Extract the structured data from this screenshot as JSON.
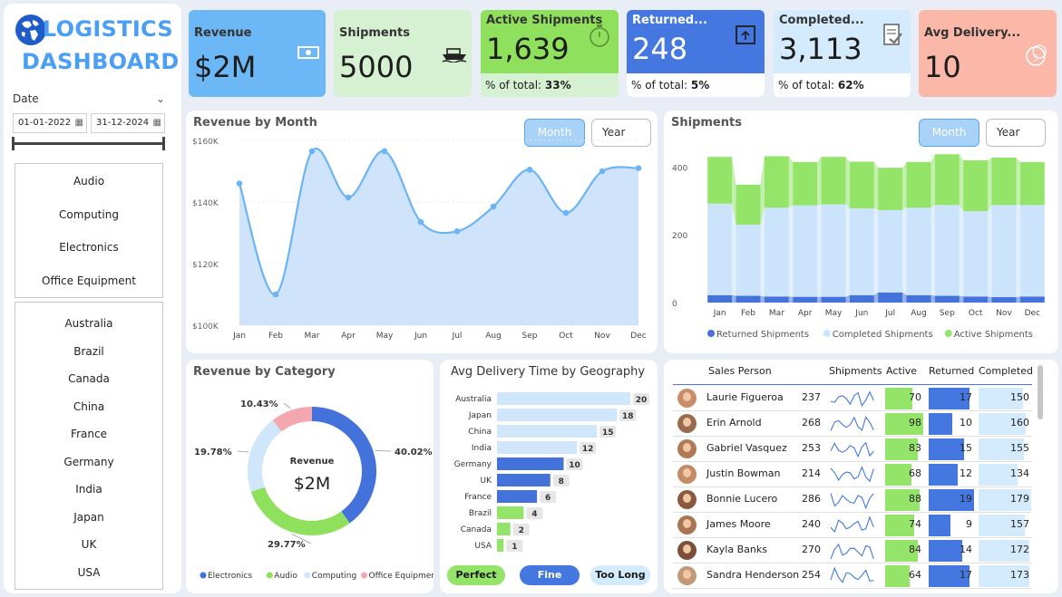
{
  "logo": {
    "line1": "LOGISTICS",
    "line2": "DASHBOARD",
    "icon": "globe-icon"
  },
  "date_filter": {
    "label": "Date",
    "start": "01-01-2022",
    "end": "31-12-2024"
  },
  "categories": [
    "Audio",
    "Computing",
    "Electronics",
    "Office Equipment"
  ],
  "countries": [
    "Australia",
    "Brazil",
    "Canada",
    "China",
    "France",
    "Germany",
    "India",
    "Japan",
    "UK",
    "USA"
  ],
  "kpis": {
    "revenue": {
      "title": "Revenue",
      "value": "$2M",
      "icon": "money-icon",
      "color": "#6cb8f6"
    },
    "shipments": {
      "title": "Shipments",
      "value": "5000",
      "icon": "ship-icon",
      "color": "#d6f1d1"
    },
    "active": {
      "title": "Active Shipments",
      "value": "1,639",
      "pct_label": "% of total:",
      "pct": "33%",
      "icon": "stopwatch-icon",
      "color": "#8fe05c"
    },
    "returned": {
      "title": "Returned...",
      "value": "248",
      "pct_label": "% of total:",
      "pct": "5%",
      "icon": "return-box-icon",
      "color": "#4478e0"
    },
    "completed": {
      "title": "Completed...",
      "value": "3,113",
      "pct_label": "% of total:",
      "pct": "62%",
      "icon": "checklist-icon",
      "color": "#d3ebfd"
    },
    "delivery": {
      "title": "Avg Delivery...",
      "value": "10",
      "icon": "five-coin-icon",
      "color": "#fbb8a8"
    }
  },
  "toggles": {
    "month": "Month",
    "year": "Year"
  },
  "chart_data": [
    {
      "type": "area",
      "title": "Revenue by Month",
      "categories": [
        "Jan",
        "Feb",
        "Mar",
        "Apr",
        "May",
        "Jun",
        "Jul",
        "Aug",
        "Sep",
        "Oct",
        "Nov",
        "Dec"
      ],
      "values": [
        146000,
        110000,
        156500,
        141500,
        156500,
        133500,
        130500,
        138500,
        150500,
        136500,
        150000,
        151000
      ],
      "yticks": [
        "$160K",
        "$140K",
        "$120K",
        "$100K"
      ],
      "ylim": [
        100000,
        160000
      ]
    },
    {
      "type": "bar",
      "title": "Shipments",
      "categories": [
        "Jan",
        "Feb",
        "Mar",
        "Apr",
        "May",
        "Jun",
        "Jul",
        "Aug",
        "Sep",
        "Oct",
        "Nov",
        "Dec"
      ],
      "series": [
        {
          "name": "Returned Shipments",
          "color": "#4472db",
          "values": [
            22,
            20,
            18,
            17,
            17,
            22,
            30,
            22,
            20,
            18,
            16,
            18
          ]
        },
        {
          "name": "Completed Shipments",
          "color": "#cbe4fb",
          "values": [
            270,
            210,
            262,
            270,
            273,
            256,
            243,
            258,
            268,
            252,
            272,
            270
          ]
        },
        {
          "name": "Active Shipments",
          "color": "#94e46a",
          "values": [
            138,
            118,
            152,
            128,
            140,
            138,
            125,
            135,
            150,
            150,
            140,
            127
          ]
        }
      ],
      "yticks": [
        "400",
        "200",
        "0"
      ],
      "ylim": [
        0,
        460
      ]
    },
    {
      "type": "pie",
      "title": "Revenue by Category",
      "center_label": "Revenue",
      "center_value": "$2M",
      "slices": [
        {
          "name": "Electronics",
          "value": 40.02,
          "label": "40.02%",
          "color": "#4472db"
        },
        {
          "name": "Audio",
          "value": 29.77,
          "label": "29.77%",
          "color": "#8fe05c"
        },
        {
          "name": "Computing",
          "value": 19.78,
          "label": "19.78%",
          "color": "#cfe6fb"
        },
        {
          "name": "Office Equipment",
          "value": 10.43,
          "label": "10.43%",
          "color": "#f4a7ae"
        }
      ]
    },
    {
      "type": "bar",
      "title": "Avg Delivery Time by Geography",
      "categories": [
        "Australia",
        "Japan",
        "China",
        "India",
        "Germany",
        "UK",
        "France",
        "Brazil",
        "Canada",
        "USA"
      ],
      "values": [
        20,
        18,
        15,
        12,
        10,
        8,
        6,
        4,
        2,
        1
      ],
      "colors": [
        "#cfe6fb",
        "#cfe6fb",
        "#cfe6fb",
        "#cfe6fb",
        "#4472db",
        "#4472db",
        "#4472db",
        "#94e46a",
        "#94e46a",
        "#94e46a"
      ],
      "xlim": [
        0,
        20
      ]
    }
  ],
  "delivery_legend": [
    {
      "label": "Perfect",
      "color": "#94e46a",
      "text": "#1a1a1a"
    },
    {
      "label": "Fine",
      "color": "#4478e0",
      "text": "#ffffff"
    },
    {
      "label": "Too Long",
      "color": "#d3ebfd",
      "text": "#1a1a1a"
    }
  ],
  "table": {
    "headers": [
      "Sales Person",
      "Shipments",
      "Active",
      "Returned",
      "Completed"
    ],
    "rows": [
      {
        "name": "Laurie Figueroa",
        "shipments": 237,
        "active": 70,
        "returned": 17,
        "completed": 150
      },
      {
        "name": "Erin Arnold",
        "shipments": 268,
        "active": 98,
        "returned": 10,
        "completed": 160
      },
      {
        "name": "Gabriel Vasquez",
        "shipments": 253,
        "active": 83,
        "returned": 15,
        "completed": 155
      },
      {
        "name": "Justin Bowman",
        "shipments": 214,
        "active": 68,
        "returned": 12,
        "completed": 134
      },
      {
        "name": "Bonnie Lucero",
        "shipments": 286,
        "active": 88,
        "returned": 19,
        "completed": 179
      },
      {
        "name": "James Moore",
        "shipments": 240,
        "active": 74,
        "returned": 9,
        "completed": 157
      },
      {
        "name": "Kayla Banks",
        "shipments": 270,
        "active": 84,
        "returned": 14,
        "completed": 172
      },
      {
        "name": "Sandra Henderson",
        "shipments": 254,
        "active": 64,
        "returned": 17,
        "completed": 173
      }
    ],
    "max": {
      "active": 98,
      "returned": 19,
      "completed": 179
    }
  }
}
